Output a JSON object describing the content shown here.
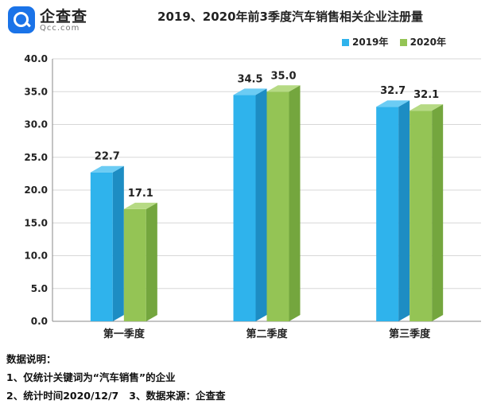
{
  "header": {
    "brand_cn": "企查查",
    "brand_en": "Qcc.com"
  },
  "chart_data": {
    "type": "bar",
    "title": "2019、2020年前3季度汽车销售相关企业注册量",
    "categories": [
      "第一季度",
      "第二季度",
      "第三季度"
    ],
    "series": [
      {
        "name": "2019年",
        "values": [
          22.7,
          34.5,
          32.7
        ],
        "labels": [
          "22.7",
          "34.5",
          "32.7"
        ]
      },
      {
        "name": "2020年",
        "values": [
          17.1,
          35.0,
          32.1
        ],
        "labels": [
          "17.1",
          "35.0",
          "32.1"
        ]
      }
    ],
    "ylim": [
      0,
      40
    ],
    "yticks": [
      "0.0",
      "5.0",
      "10.0",
      "15.0",
      "20.0",
      "25.0",
      "30.0",
      "35.0",
      "40.0"
    ],
    "xlabel": "",
    "ylabel": "",
    "grid": true,
    "legend": "top-right"
  },
  "colors": {
    "series_2019_front": "#2fb3ec",
    "series_2019_side": "#1d8dc3",
    "series_2019_top": "#6cccf4",
    "series_2020_front": "#94c455",
    "series_2020_side": "#74a63e",
    "series_2020_top": "#b6da84",
    "grid": "#d7d7d7",
    "axis": "#888888"
  },
  "notes": {
    "heading": "数据说明：",
    "line1": "1、仅统计关键词为“汽车销售”的企业",
    "line2": "2、统计时间2020/12/7   3、数据来源：企查查"
  }
}
